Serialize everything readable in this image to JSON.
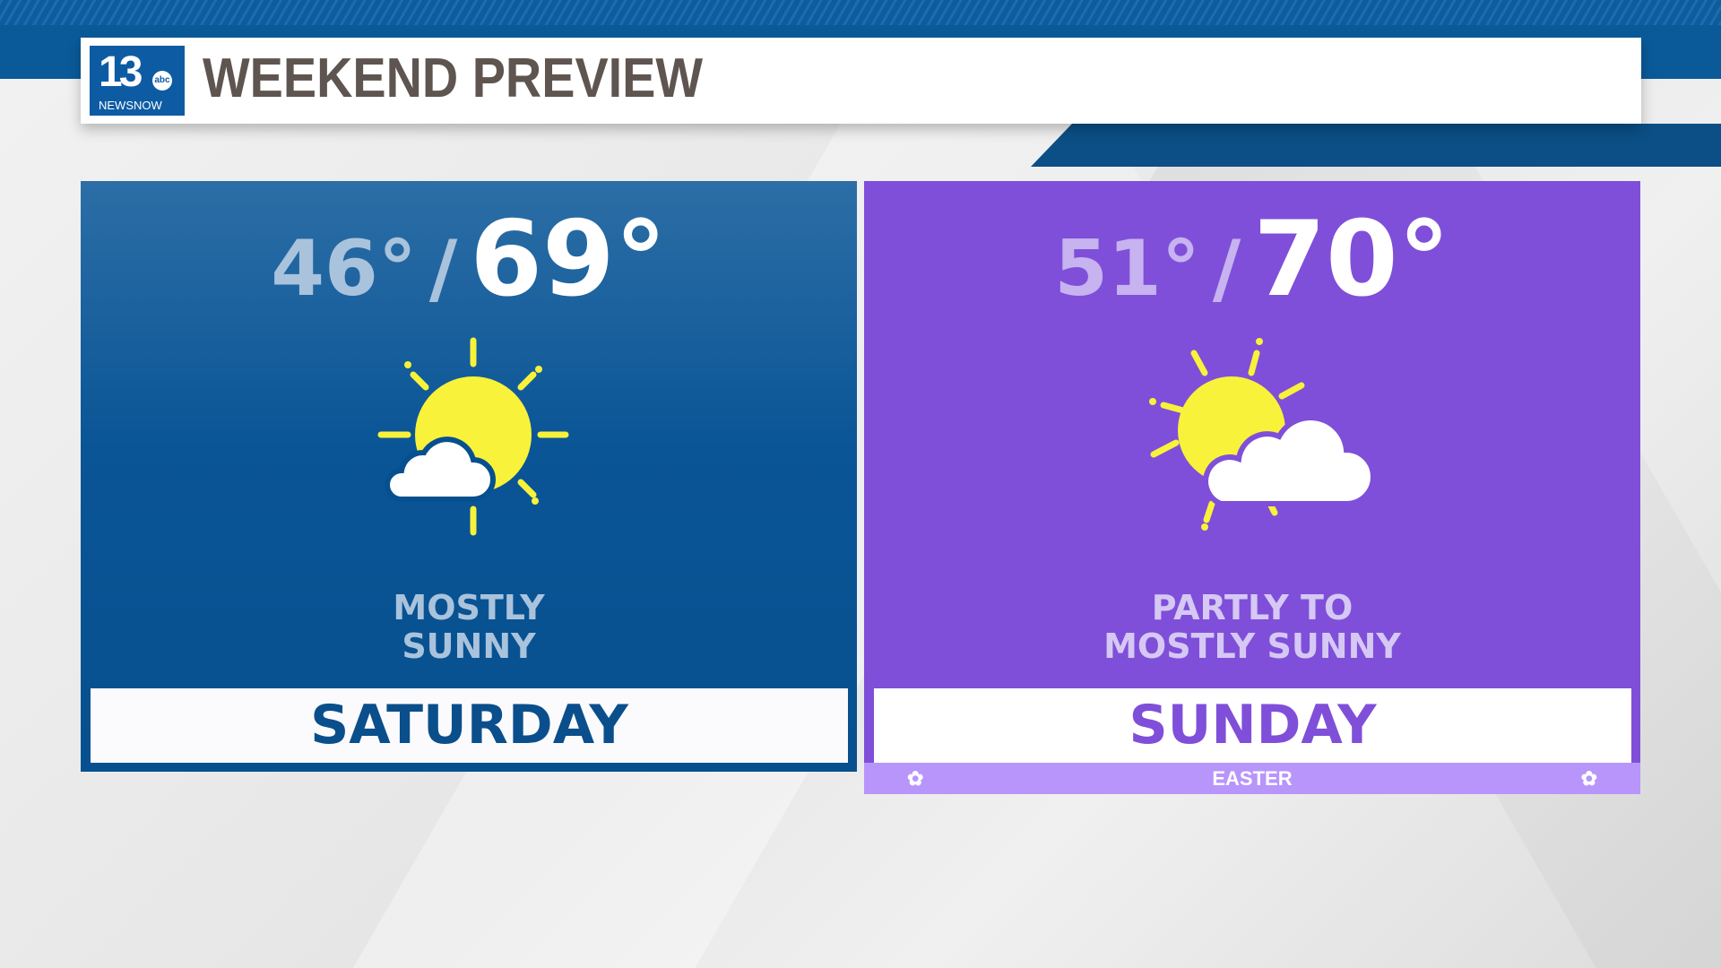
{
  "header": {
    "title": "WEEKEND PREVIEW",
    "logo": {
      "number": "13",
      "network": "abc",
      "brand": "NEWSNOW"
    }
  },
  "days": [
    {
      "low": "46°",
      "high": "69°",
      "separator": "/",
      "condition_line1": "MOSTLY",
      "condition_line2": "SUNNY",
      "day": "SATURDAY",
      "icon": "sun-behind-small-cloud-icon",
      "color": "#0a4f8c"
    },
    {
      "low": "51°",
      "high": "70°",
      "separator": "/",
      "condition_line1": "PARTLY TO",
      "condition_line2": "MOSTLY SUNNY",
      "day": "SUNDAY",
      "icon": "sun-behind-cloud-icon",
      "color": "#7f4fd9",
      "holiday": "EASTER",
      "holiday_icon": "flower-icon"
    }
  ],
  "colors": {
    "sun": "#f9f23a",
    "cloud": "#ffffff",
    "holiday_band": "#b895fb"
  }
}
